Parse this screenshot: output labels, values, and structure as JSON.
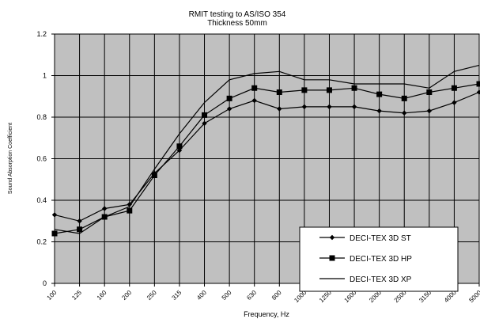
{
  "chart_data": {
    "type": "line",
    "title": "RMIT testing to AS/ISO 354",
    "subtitle": "Thickness 50mm",
    "xlabel": "Frequency, Hz",
    "ylabel": "Sound Absorption Coefficient",
    "categories": [
      "100",
      "125",
      "160",
      "200",
      "250",
      "315",
      "400",
      "500",
      "630",
      "800",
      "1000",
      "1250",
      "1600",
      "2000",
      "2500",
      "3150",
      "4000",
      "5000"
    ],
    "ylim": [
      0,
      1.2
    ],
    "yticks": [
      "0",
      "0.2",
      "0.4",
      "0.6",
      "0.8",
      "1",
      "1.2"
    ],
    "yticks_values": [
      0,
      0.2,
      0.4,
      0.6,
      0.8,
      1.0,
      1.2
    ],
    "grid": true,
    "legend_position": "bottom-right",
    "plot_background": "#c0c0c0",
    "series": [
      {
        "name": "DECI-TEX 3D ST",
        "marker": "diamond",
        "values": [
          0.33,
          0.3,
          0.36,
          0.38,
          0.53,
          0.64,
          0.77,
          0.84,
          0.88,
          0.84,
          0.85,
          0.85,
          0.85,
          0.83,
          0.82,
          0.83,
          0.87,
          0.92
        ]
      },
      {
        "name": "DECI-TEX 3D HP",
        "marker": "square",
        "values": [
          0.24,
          0.26,
          0.32,
          0.35,
          0.52,
          0.66,
          0.81,
          0.89,
          0.94,
          0.92,
          0.93,
          0.93,
          0.94,
          0.91,
          0.89,
          0.92,
          0.94,
          0.96
        ]
      },
      {
        "name": "DECI-TEX 3D XP",
        "marker": "none",
        "values": [
          0.26,
          0.24,
          0.32,
          0.37,
          0.55,
          0.72,
          0.87,
          0.98,
          1.01,
          1.02,
          0.98,
          0.98,
          0.96,
          0.96,
          0.96,
          0.94,
          1.02,
          1.05
        ]
      }
    ]
  }
}
